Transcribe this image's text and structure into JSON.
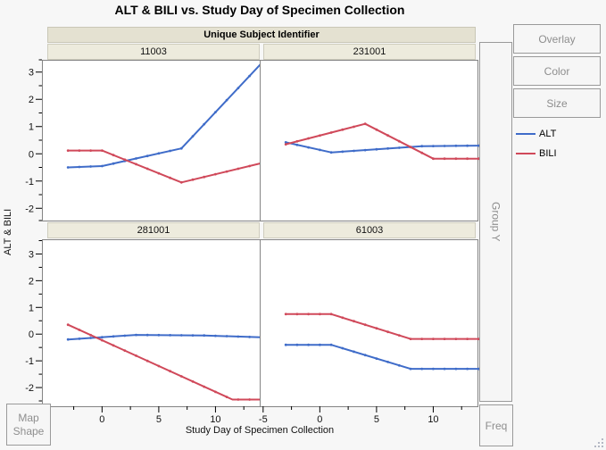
{
  "title": "ALT & BILI vs. Study Day of Specimen Collection",
  "controls": {
    "overlay": "Overlay",
    "color": "Color",
    "size": "Size",
    "group_y": "Group Y",
    "freq": "Freq",
    "map_shape": "Map Shape"
  },
  "legend": [
    {
      "label": "ALT",
      "color": "#3f6cc9"
    },
    {
      "label": "BILI",
      "color": "#d0495a"
    }
  ],
  "chart_data": {
    "type": "line",
    "title": "ALT & BILI vs. Study Day of Specimen Collection",
    "facet_label": "Unique Subject Identifier",
    "xlabel": "Study Day of Specimen Collection",
    "ylabel": "ALT & BILI",
    "grid": false,
    "legend_position": "right",
    "xlim": [
      -5.3,
      13.9
    ],
    "x_major_ticks": [
      -5,
      0,
      5,
      10
    ],
    "x_minor_ticks": [
      -2.5,
      2.5,
      7.5,
      12.5
    ],
    "y_major_ticks": [
      3,
      2,
      1,
      0,
      -1,
      -2
    ],
    "y_minor_ticks": [
      3.5,
      2.5,
      1.5,
      0.5,
      -0.5,
      -1.5,
      -2.5
    ],
    "row_ylim": [
      [
        -2.45,
        3.45
      ],
      [
        -2.7,
        3.55
      ]
    ],
    "marker_day_range": [
      -3,
      14
    ],
    "marker_day_step": 1,
    "panels": [
      {
        "subject": "11003",
        "series": [
          {
            "name": "ALT",
            "points": [
              [
                -3,
                -0.5
              ],
              [
                0,
                -0.45
              ],
              [
                7,
                0.2
              ],
              [
                14,
                3.3
              ]
            ]
          },
          {
            "name": "BILI",
            "points": [
              [
                -3,
                0.12
              ],
              [
                0,
                0.12
              ],
              [
                7,
                -1.05
              ],
              [
                14,
                -0.35
              ]
            ]
          }
        ]
      },
      {
        "subject": "231001",
        "series": [
          {
            "name": "ALT",
            "points": [
              [
                -3,
                0.42
              ],
              [
                1,
                0.05
              ],
              [
                9,
                0.28
              ],
              [
                14,
                0.3
              ]
            ]
          },
          {
            "name": "BILI",
            "points": [
              [
                -3,
                0.35
              ],
              [
                4,
                1.1
              ],
              [
                10,
                -0.18
              ],
              [
                14,
                -0.18
              ]
            ]
          }
        ]
      },
      {
        "subject": "281001",
        "series": [
          {
            "name": "ALT",
            "points": [
              [
                -3,
                -0.2
              ],
              [
                3,
                -0.03
              ],
              [
                9,
                -0.05
              ],
              [
                14,
                -0.12
              ]
            ]
          },
          {
            "name": "BILI",
            "points": [
              [
                -3,
                0.35
              ],
              [
                11.5,
                -2.45
              ],
              [
                14,
                -2.45
              ]
            ]
          }
        ]
      },
      {
        "subject": "61003",
        "series": [
          {
            "name": "ALT",
            "points": [
              [
                -3,
                -0.4
              ],
              [
                1,
                -0.4
              ],
              [
                8,
                -1.3
              ],
              [
                14,
                -1.3
              ]
            ]
          },
          {
            "name": "BILI",
            "points": [
              [
                -3,
                0.75
              ],
              [
                1,
                0.75
              ],
              [
                8,
                -0.18
              ],
              [
                14,
                -0.18
              ]
            ]
          }
        ]
      }
    ]
  }
}
